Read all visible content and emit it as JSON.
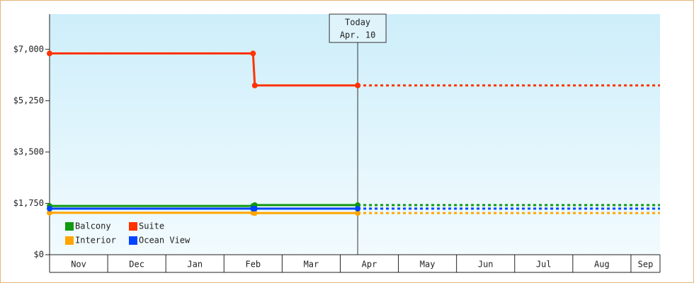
{
  "chart_data": {
    "type": "line",
    "categories": [
      "Nov",
      "Dec",
      "Jan",
      "Feb",
      "Mar",
      "Apr",
      "May",
      "Jun",
      "Jul",
      "Aug",
      "Sep"
    ],
    "xlim": [
      0,
      10.5
    ],
    "xticks": [
      0,
      1,
      2,
      3,
      4,
      5,
      6,
      7,
      8,
      9,
      10,
      10.5
    ],
    "ylim": [
      0,
      8200
    ],
    "yticks": [
      {
        "value": 0,
        "label": "$0"
      },
      {
        "value": 1750,
        "label": "$1,750"
      },
      {
        "value": 3500,
        "label": "$3,500"
      },
      {
        "value": 5250,
        "label": "$5,250"
      },
      {
        "value": 7000,
        "label": "$7,000"
      }
    ],
    "today": {
      "x": 5.3,
      "label": [
        "Today",
        "Apr. 10"
      ]
    },
    "legend": "lower-left",
    "series": [
      {
        "name": "Balcony",
        "color": "#119911",
        "x": [
          0,
          3.5,
          3.53,
          5.3
        ],
        "values": [
          1660,
          1660,
          1690,
          1690
        ]
      },
      {
        "name": "Suite",
        "color": "#ff3300",
        "x": [
          0,
          3.5,
          3.53,
          5.3
        ],
        "values": [
          6860,
          6860,
          5770,
          5770
        ]
      },
      {
        "name": "Interior",
        "color": "#ffa500",
        "x": [
          0,
          3.5,
          3.53,
          5.3
        ],
        "values": [
          1430,
          1430,
          1420,
          1420
        ]
      },
      {
        "name": "Ocean View",
        "color": "#0044ff",
        "x": [
          0,
          3.5,
          3.53,
          5.3
        ],
        "values": [
          1570,
          1570,
          1570,
          1570
        ]
      }
    ]
  }
}
